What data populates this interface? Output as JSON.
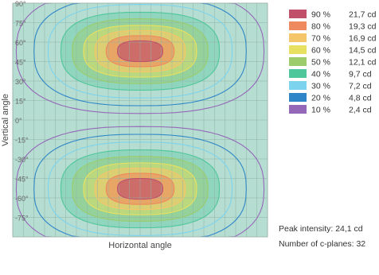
{
  "chart_data": {
    "type": "heatmap",
    "title": "",
    "xlabel": "Horizontal angle",
    "ylabel": "Vertical angle",
    "ylim": [
      -90,
      90
    ],
    "xlim": [
      -180,
      180
    ],
    "y_ticks": [
      "90°",
      "75°",
      "60°",
      "45°",
      "30°",
      "15°",
      "0°",
      "-15°",
      "-30°",
      "-45°",
      "-60°",
      "-75°"
    ],
    "grid": true,
    "legend_position": "right",
    "levels": [
      {
        "percent": "90 %",
        "value": "21,7 cd",
        "color": "#c0506a"
      },
      {
        "percent": "80 %",
        "value": "19,3 cd",
        "color": "#ee8a5e"
      },
      {
        "percent": "70 %",
        "value": "16,9 cd",
        "color": "#f5c56a"
      },
      {
        "percent": "60 %",
        "value": "14,5 cd",
        "color": "#e8e060"
      },
      {
        "percent": "50 %",
        "value": "12,1 cd",
        "color": "#9ccc6c"
      },
      {
        "percent": "40 %",
        "value": "9,7 cd",
        "color": "#4ec79a"
      },
      {
        "percent": "30 %",
        "value": "7,2 cd",
        "color": "#7cd3ee"
      },
      {
        "percent": "20 %",
        "value": "4,8 cd",
        "color": "#2e86c8"
      },
      {
        "percent": "10 %",
        "value": "2,4 cd",
        "color": "#9567b8"
      }
    ],
    "peaks": [
      {
        "h": 0,
        "v": 53
      },
      {
        "h": 0,
        "v": -53
      }
    ],
    "peak_intensity": "Peak intensity: 24,1 cd",
    "c_planes": "Number of c-planes: 32"
  }
}
